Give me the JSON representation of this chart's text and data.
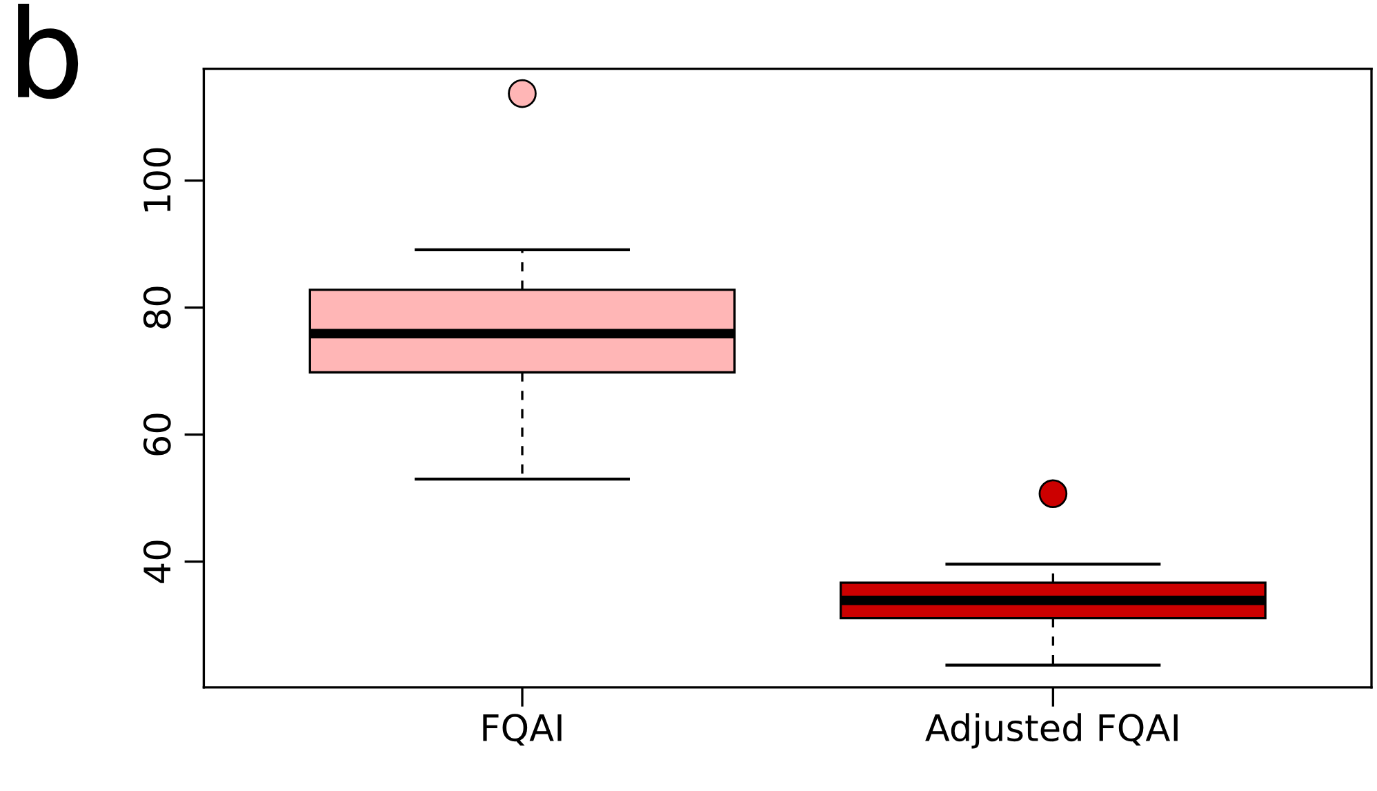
{
  "chart_data": {
    "type": "box",
    "categories": [
      "FQAI",
      "Adjusted FQAI"
    ],
    "boxes": [
      {
        "low": 53.0,
        "q1": 69.8,
        "median": 75.9,
        "q3": 82.8,
        "high": 89.1,
        "outliers": [
          113.7
        ]
      },
      {
        "low": 23.7,
        "q1": 31.1,
        "median": 33.9,
        "q3": 36.7,
        "high": 39.6,
        "outliers": [
          50.7
        ]
      }
    ],
    "colors": [
      "#ffb6b6",
      "#cc0000"
    ],
    "ylim": [
      20.2,
      117.6
    ],
    "yticks": [
      40,
      60,
      80,
      100
    ],
    "grid": false,
    "legend": false,
    "annotations": [
      "b"
    ]
  }
}
